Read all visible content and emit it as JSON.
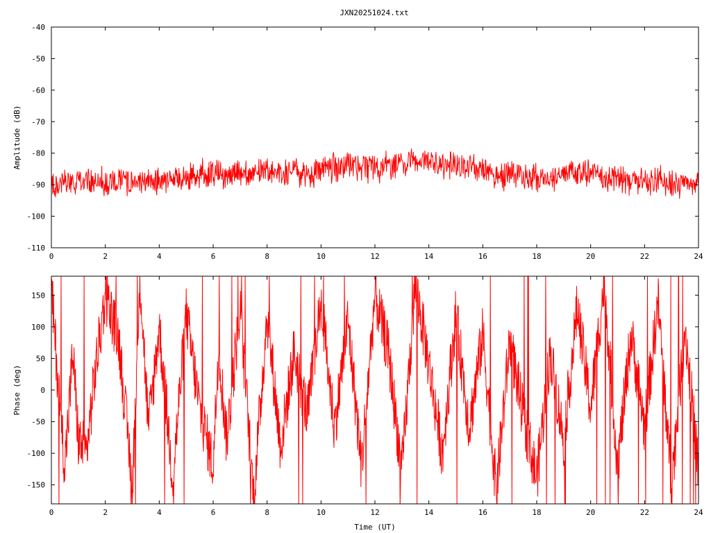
{
  "chart_data": [
    {
      "type": "line",
      "title": "JXN20251024.txt",
      "xlabel": "",
      "ylabel": "Amplitude (dB)",
      "xlim": [
        0,
        24
      ],
      "ylim": [
        -110,
        -40
      ],
      "xticks": [
        "0",
        "2",
        "4",
        "6",
        "8",
        "10",
        "12",
        "14",
        "16",
        "18",
        "20",
        "22",
        "24"
      ],
      "yticks": [
        "-40",
        "-50",
        "-60",
        "-70",
        "-80",
        "-90",
        "-100",
        "-110"
      ],
      "grid": false,
      "series": [
        {
          "color": "#ff0000",
          "x": [
            0,
            1,
            2,
            3,
            4,
            4.5,
            5,
            6,
            7,
            8,
            9,
            9.5,
            10,
            11,
            12,
            12.5,
            13,
            14,
            15,
            15.5,
            16,
            16.5,
            17,
            18,
            18.5,
            19,
            19.5,
            20,
            20.5,
            21,
            22,
            23,
            24
          ],
          "y": [
            -90,
            -89,
            -89,
            -89,
            -89,
            -89,
            -87.5,
            -86,
            -86.5,
            -86,
            -86,
            -87.5,
            -85,
            -84,
            -84.5,
            -84,
            -83,
            -83,
            -84,
            -84,
            -85,
            -87.5,
            -87,
            -87.5,
            -88,
            -86,
            -87,
            -85.5,
            -88,
            -88,
            -88.5,
            -89,
            -89
          ]
        }
      ]
    },
    {
      "type": "line",
      "title": "",
      "xlabel": "Time (UT)",
      "ylabel": "Phase (deg)",
      "xlim": [
        0,
        24
      ],
      "ylim": [
        -180,
        180
      ],
      "xticks": [
        "0",
        "2",
        "4",
        "6",
        "8",
        "10",
        "12",
        "14",
        "16",
        "18",
        "20",
        "22",
        "24"
      ],
      "yticks": [
        "150",
        "100",
        "50",
        "0",
        "-50",
        "-100",
        "-150"
      ],
      "grid": false,
      "series": [
        {
          "color": "#ff0000",
          "x": [
            0,
            0.2,
            0.5,
            0.8,
            1,
            1.3,
            1.6,
            2,
            2.5,
            3,
            3.3,
            3.6,
            4,
            4.5,
            5,
            5.5,
            6,
            6.2,
            6.5,
            7,
            7.5,
            8,
            8.5,
            9,
            9.5,
            10,
            10.5,
            11,
            11.5,
            12,
            12.5,
            13,
            13.5,
            14,
            14.5,
            15,
            15.5,
            16,
            16.5,
            17,
            17.5,
            18,
            18.5,
            19,
            19.5,
            20,
            20.5,
            21,
            21.5,
            22,
            22.5,
            23,
            23.5,
            24
          ],
          "y": [
            160,
            40,
            -120,
            60,
            -80,
            -100,
            20,
            150,
            80,
            -150,
            170,
            -60,
            100,
            -140,
            120,
            -30,
            -120,
            70,
            -80,
            130,
            -170,
            120,
            -90,
            60,
            -40,
            140,
            -60,
            110,
            -120,
            150,
            60,
            -130,
            170,
            40,
            -100,
            120,
            -60,
            90,
            -160,
            80,
            -40,
            -140,
            60,
            -80,
            130,
            -30,
            170,
            -120,
            90,
            -60,
            140,
            -150,
            100,
            -130
          ]
        }
      ]
    }
  ]
}
